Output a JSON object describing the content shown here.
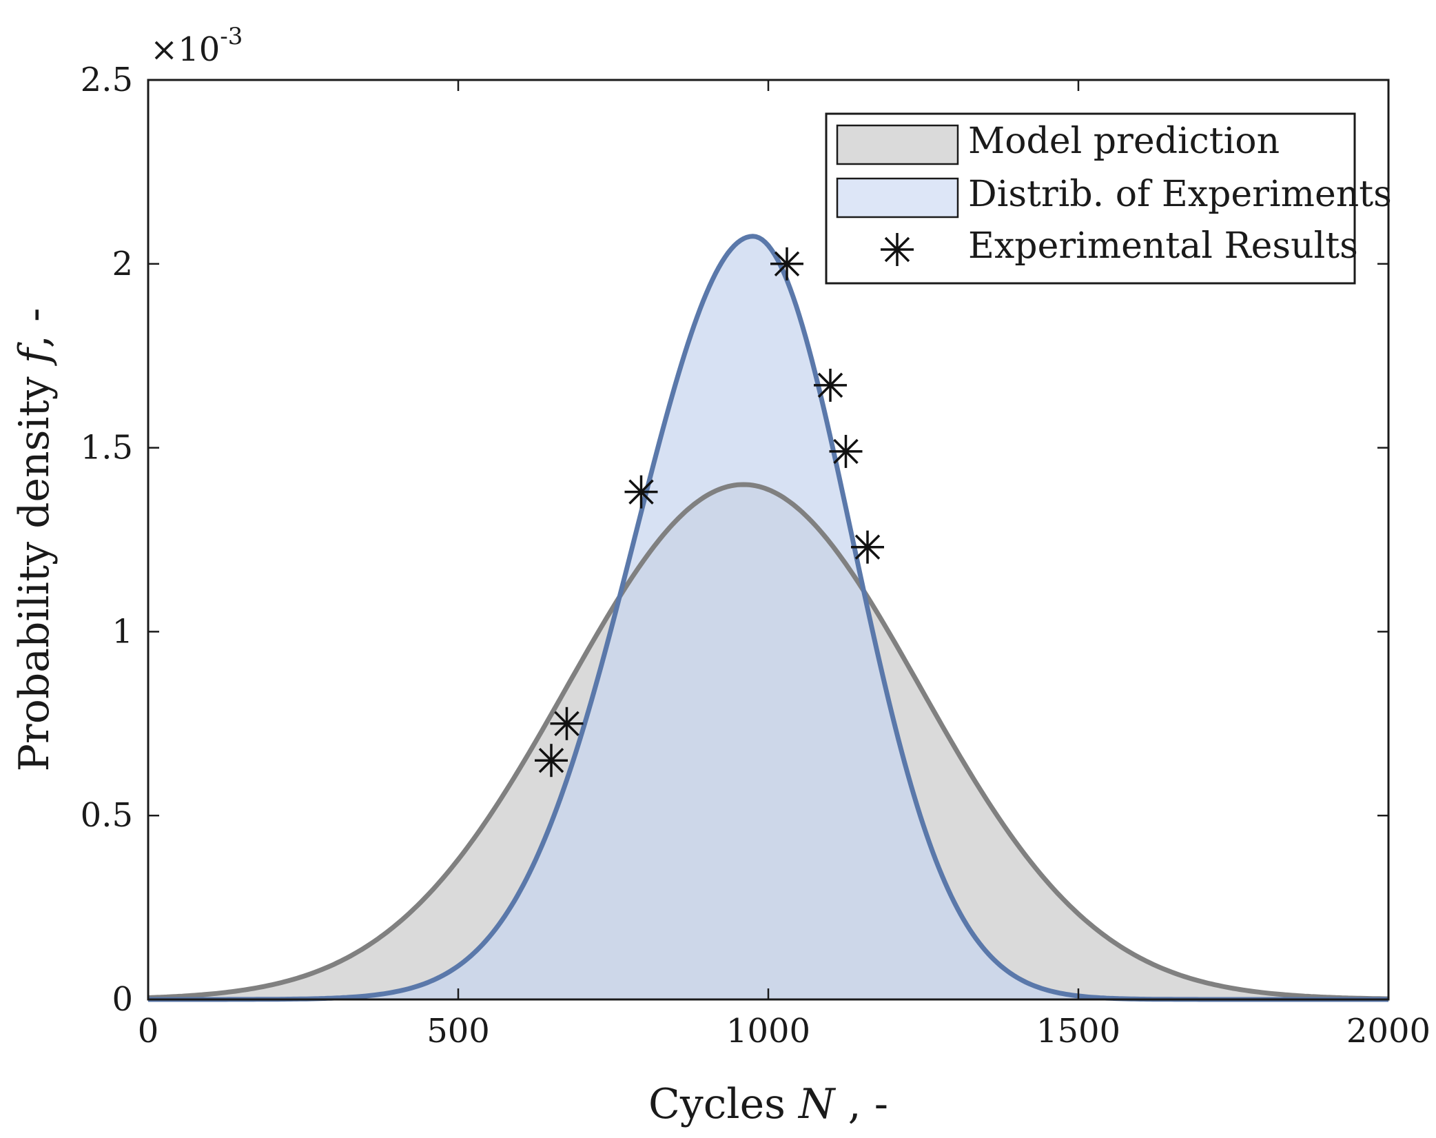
{
  "chart_data": {
    "type": "area",
    "xlabel": "Cycles",
    "xlabel_var": "N",
    "xlabel_suffix": ", -",
    "ylabel": "Probability density",
    "ylabel_var": "f",
    "ylabel_suffix": ", -",
    "y_scale_base": "×10",
    "y_scale_exponent": "-3",
    "xlim": [
      0,
      2000
    ],
    "ylim": [
      0,
      2.5
    ],
    "xticks": [
      0,
      500,
      1000,
      1500,
      2000
    ],
    "xtick_labels": [
      "0",
      "500",
      "1000",
      "1500",
      "2000"
    ],
    "yticks": [
      0,
      0.5,
      1,
      1.5,
      2,
      2.5
    ],
    "ytick_labels": [
      "0",
      "0.5",
      "1",
      "1.5",
      "2",
      "2.5"
    ],
    "legend_position": "top-right",
    "series": [
      {
        "name": "Model prediction",
        "kind": "normal-pdf-area",
        "mean": 960,
        "std": 285,
        "peak": 1.4,
        "fill": "#dadada",
        "stroke": "#808080"
      },
      {
        "name": "Distrib. of Experiments",
        "kind": "skewed-pdf-area",
        "mode": 975,
        "left_std": 190,
        "right_std": 160,
        "peak": 2.075,
        "fill": "#c8d6ef",
        "stroke": "#5a78aa"
      },
      {
        "name": "Experimental Results",
        "kind": "scatter",
        "marker": "asterisk",
        "points": [
          {
            "x": 650,
            "y": 0.65
          },
          {
            "x": 675,
            "y": 0.75
          },
          {
            "x": 795,
            "y": 1.38
          },
          {
            "x": 1030,
            "y": 2.0
          },
          {
            "x": 1100,
            "y": 1.67
          },
          {
            "x": 1125,
            "y": 1.49
          },
          {
            "x": 1160,
            "y": 1.23
          }
        ]
      }
    ]
  },
  "colors": {
    "model_fill": "#dadada",
    "model_stroke": "#808080",
    "exp_fill": "#c8d6ef",
    "exp_stroke": "#5a78aa",
    "frame": "#1a1a1a"
  }
}
